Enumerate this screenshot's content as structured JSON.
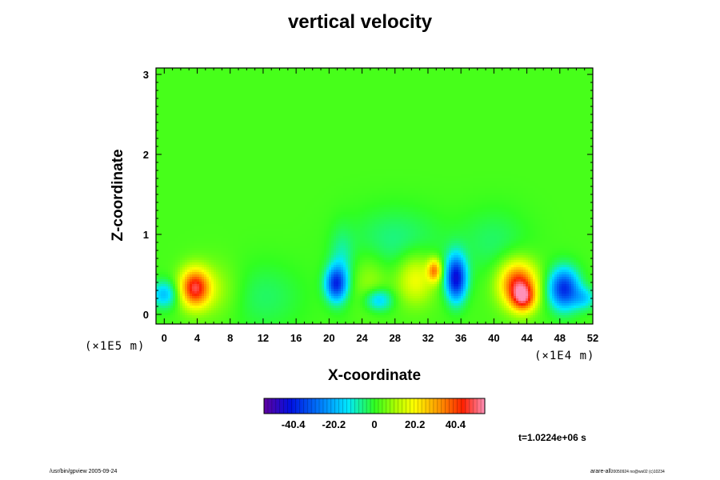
{
  "chart_data": {
    "type": "heatmap",
    "title": "vertical velocity",
    "xlabel": "X-coordinate",
    "ylabel": "Z-coordinate",
    "x_unit": "(×1E4 m)",
    "y_unit": "(×1E5 m)",
    "xlim": [
      -1,
      52
    ],
    "ylim": [
      -0.12,
      3.08
    ],
    "x_ticks": [
      "0",
      "4",
      "8",
      "12",
      "16",
      "20",
      "24",
      "28",
      "32",
      "36",
      "40",
      "44",
      "48",
      "52"
    ],
    "y_ticks": [
      "0",
      "1",
      "2",
      "3"
    ],
    "grid": false,
    "colorbar": {
      "min": -55,
      "max": 55,
      "tick_values": [
        -40.4,
        -20.2,
        0,
        20.2,
        40.4
      ],
      "tick_labels": [
        "-40.4",
        "-20.2",
        "0",
        "20.2",
        "40.4"
      ],
      "colormap": "rainbow (purple-blue-cyan-green-yellow-red-pink)"
    },
    "background_value": 2,
    "features": [
      {
        "x": 0.0,
        "z": 0.25,
        "value": -20,
        "sx": 1.2,
        "sz": 0.12
      },
      {
        "x": 3.7,
        "z": 0.33,
        "value": 44,
        "sx": 1.3,
        "sz": 0.17
      },
      {
        "x": 6.5,
        "z": 0.3,
        "value": 8,
        "sx": 2.0,
        "sz": 0.25
      },
      {
        "x": 12.0,
        "z": 0.22,
        "value": -6,
        "sx": 3.5,
        "sz": 0.3
      },
      {
        "x": 20.8,
        "z": 0.38,
        "value": -35,
        "sx": 0.9,
        "sz": 0.15
      },
      {
        "x": 21.5,
        "z": 0.6,
        "value": -10,
        "sx": 1.0,
        "sz": 0.3
      },
      {
        "x": 25.0,
        "z": 0.42,
        "value": 8,
        "sx": 1.5,
        "sz": 0.25
      },
      {
        "x": 26.0,
        "z": 0.18,
        "value": -20,
        "sx": 1.2,
        "sz": 0.1
      },
      {
        "x": 30.5,
        "z": 0.45,
        "value": 18,
        "sx": 1.6,
        "sz": 0.22
      },
      {
        "x": 32.8,
        "z": 0.55,
        "value": 30,
        "sx": 0.6,
        "sz": 0.1
      },
      {
        "x": 35.4,
        "z": 0.45,
        "value": -45,
        "sx": 0.9,
        "sz": 0.2
      },
      {
        "x": 42.9,
        "z": 0.38,
        "value": 42,
        "sx": 1.6,
        "sz": 0.2
      },
      {
        "x": 43.6,
        "z": 0.2,
        "value": 30,
        "sx": 1.0,
        "sz": 0.12
      },
      {
        "x": 48.5,
        "z": 0.32,
        "value": -40,
        "sx": 1.3,
        "sz": 0.18
      },
      {
        "x": 51.0,
        "z": 0.2,
        "value": -15,
        "sx": 1.0,
        "sz": 0.1
      },
      {
        "x": 28.0,
        "z": 0.9,
        "value": -8,
        "sx": 4.0,
        "sz": 0.3
      },
      {
        "x": 40.0,
        "z": 0.9,
        "value": -6,
        "sx": 3.0,
        "sz": 0.3
      }
    ]
  },
  "time_label": "t=1.0224e+06 s",
  "footer": {
    "left": "/usr/bin/gpview 2005-09-24",
    "right_main": "arare-all",
    "right_small": "20050924 no@ws02 (c)10234"
  }
}
